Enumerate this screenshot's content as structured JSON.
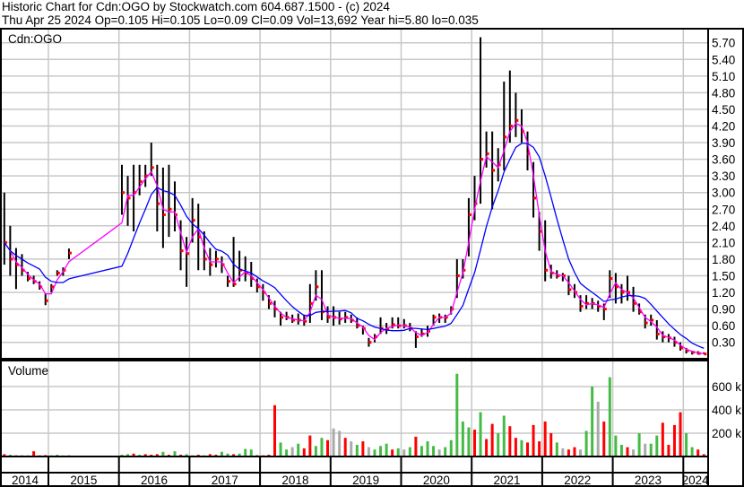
{
  "header": {
    "line1": "Historic Chart for Cdn:OGO by Stockwatch.com 604.687.1500 - (c) 2024",
    "line2": "Thu Apr 25 2024  Op=0.105  Hi=0.105  Lo=0.09  Cl=0.09  Vol=13,692  Year hi=5.80  lo=0.035"
  },
  "colors": {
    "bar": "#000000",
    "close_tick": "#ff0000",
    "short_ma": "#ff00ff",
    "long_ma": "#0000ff",
    "vol_up": "#44bb44",
    "vol_down": "#ff0000",
    "vol_flat": "#aaaaaa",
    "grid": "#c8c8c8"
  },
  "chart_data": [
    {
      "type": "ohlc",
      "title": "Cdn:OGO",
      "ylim": [
        0.0,
        5.85
      ],
      "y_ticks": [
        "0.30",
        "0.60",
        "0.90",
        "1.20",
        "1.50",
        "1.80",
        "2.10",
        "2.40",
        "2.70",
        "3.00",
        "3.30",
        "3.60",
        "3.90",
        "4.20",
        "4.50",
        "4.80",
        "5.10",
        "5.40",
        "5.70"
      ],
      "x_labels": [
        "2014",
        "2015",
        "2016",
        "2017",
        "2018",
        "2019",
        "2020",
        "2021",
        "2022",
        "2023",
        "2024"
      ],
      "grid": true,
      "columns": [
        "month",
        "high",
        "low",
        "close"
      ],
      "rows": [
        [
          "2014-05",
          3.0,
          1.7,
          2.1
        ],
        [
          "2014-06",
          2.4,
          1.5,
          1.8
        ],
        [
          "2014-07",
          2.0,
          1.26,
          1.7
        ],
        [
          "2014-08",
          1.89,
          1.5,
          1.6
        ],
        [
          "2014-09",
          1.57,
          1.4,
          1.45
        ],
        [
          "2014-10",
          1.5,
          1.35,
          1.4
        ],
        [
          "2014-11",
          1.4,
          1.25,
          1.3
        ],
        [
          "2014-12",
          1.18,
          0.97,
          1.05
        ],
        [
          "2015-01",
          1.35,
          1.2,
          1.3
        ],
        [
          "2015-02",
          1.6,
          1.5,
          1.55
        ],
        [
          "2015-03",
          1.65,
          1.5,
          1.6
        ],
        [
          "2015-04",
          1.99,
          1.8,
          1.91
        ],
        [
          "2016-01",
          3.5,
          2.6,
          3.0
        ],
        [
          "2016-02",
          3.3,
          2.4,
          2.9
        ],
        [
          "2016-03",
          3.5,
          2.3,
          3.0
        ],
        [
          "2016-04",
          3.5,
          2.95,
          3.2
        ],
        [
          "2016-05",
          3.5,
          3.1,
          3.3
        ],
        [
          "2016-06",
          3.9,
          3.3,
          3.45
        ],
        [
          "2016-07",
          3.5,
          2.3,
          2.8
        ],
        [
          "2016-08",
          3.45,
          2.0,
          2.6
        ],
        [
          "2016-09",
          3.5,
          2.2,
          2.7
        ],
        [
          "2016-10",
          3.2,
          2.3,
          2.6
        ],
        [
          "2016-11",
          2.5,
          1.6,
          1.95
        ],
        [
          "2016-12",
          2.2,
          1.3,
          1.9
        ],
        [
          "2017-01",
          2.9,
          2.1,
          2.5
        ],
        [
          "2017-02",
          2.8,
          1.6,
          2.2
        ],
        [
          "2017-03",
          2.3,
          1.6,
          1.8
        ],
        [
          "2017-04",
          2.0,
          1.5,
          1.7
        ],
        [
          "2017-05",
          1.95,
          1.65,
          1.8
        ],
        [
          "2017-06",
          1.85,
          1.55,
          1.7
        ],
        [
          "2017-07",
          1.5,
          1.3,
          1.4
        ],
        [
          "2017-08",
          2.2,
          1.3,
          1.35
        ],
        [
          "2017-09",
          1.95,
          1.4,
          1.6
        ],
        [
          "2017-10",
          1.85,
          1.4,
          1.55
        ],
        [
          "2017-11",
          1.75,
          1.3,
          1.45
        ],
        [
          "2017-12",
          1.45,
          1.2,
          1.3
        ],
        [
          "2018-01",
          1.35,
          1.05,
          1.2
        ],
        [
          "2018-02",
          1.15,
          0.9,
          1.0
        ],
        [
          "2018-03",
          1.05,
          0.75,
          0.9
        ],
        [
          "2018-04",
          0.85,
          0.6,
          0.75
        ],
        [
          "2018-05",
          0.85,
          0.7,
          0.75
        ],
        [
          "2018-06",
          0.8,
          0.65,
          0.7
        ],
        [
          "2018-07",
          0.82,
          0.62,
          0.7
        ],
        [
          "2018-08",
          0.8,
          0.6,
          0.68
        ],
        [
          "2018-09",
          1.35,
          0.65,
          1.0
        ],
        [
          "2018-10",
          1.6,
          1.05,
          1.3
        ],
        [
          "2018-11",
          1.6,
          0.7,
          0.85
        ],
        [
          "2018-12",
          0.95,
          0.65,
          0.75
        ],
        [
          "2019-01",
          0.95,
          0.6,
          0.75
        ],
        [
          "2019-02",
          0.85,
          0.62,
          0.72
        ],
        [
          "2019-03",
          0.85,
          0.65,
          0.75
        ],
        [
          "2019-04",
          0.8,
          0.65,
          0.7
        ],
        [
          "2019-05",
          0.75,
          0.55,
          0.6
        ],
        [
          "2019-06",
          0.6,
          0.44,
          0.55
        ],
        [
          "2019-07",
          0.38,
          0.22,
          0.3
        ],
        [
          "2019-08",
          0.45,
          0.3,
          0.4
        ],
        [
          "2019-09",
          0.75,
          0.45,
          0.55
        ],
        [
          "2019-10",
          0.65,
          0.45,
          0.55
        ],
        [
          "2019-11",
          0.75,
          0.55,
          0.62
        ],
        [
          "2019-12",
          0.75,
          0.55,
          0.6
        ],
        [
          "2020-01",
          0.72,
          0.55,
          0.6
        ],
        [
          "2020-02",
          0.65,
          0.5,
          0.55
        ],
        [
          "2020-03",
          0.5,
          0.2,
          0.4
        ],
        [
          "2020-04",
          0.55,
          0.4,
          0.45
        ],
        [
          "2020-05",
          0.6,
          0.4,
          0.5
        ],
        [
          "2020-06",
          0.8,
          0.6,
          0.75
        ],
        [
          "2020-07",
          0.82,
          0.65,
          0.75
        ],
        [
          "2020-08",
          0.8,
          0.65,
          0.75
        ],
        [
          "2020-09",
          0.95,
          0.8,
          0.9
        ],
        [
          "2020-10",
          1.8,
          1.1,
          1.5
        ],
        [
          "2020-11",
          1.8,
          1.45,
          1.6
        ],
        [
          "2020-12",
          2.9,
          1.85,
          2.6
        ],
        [
          "2021-01",
          3.3,
          2.5,
          2.8
        ],
        [
          "2021-02",
          5.8,
          2.8,
          3.6
        ],
        [
          "2021-03",
          4.1,
          3.45,
          3.7
        ],
        [
          "2021-04",
          4.1,
          2.7,
          3.4
        ],
        [
          "2021-05",
          3.8,
          3.2,
          3.5
        ],
        [
          "2021-06",
          5.0,
          3.4,
          4.0
        ],
        [
          "2021-07",
          5.2,
          3.9,
          4.2
        ],
        [
          "2021-08",
          4.8,
          4.0,
          4.3
        ],
        [
          "2021-09",
          4.5,
          3.9,
          4.1
        ],
        [
          "2021-10",
          4.1,
          3.4,
          3.7
        ],
        [
          "2021-11",
          3.55,
          2.55,
          2.9
        ],
        [
          "2021-12",
          2.65,
          1.95,
          2.3
        ],
        [
          "2022-01",
          2.5,
          1.4,
          1.6
        ],
        [
          "2022-02",
          1.7,
          1.45,
          1.55
        ],
        [
          "2022-03",
          1.6,
          1.45,
          1.5
        ],
        [
          "2022-04",
          1.55,
          1.4,
          1.5
        ],
        [
          "2022-05",
          1.5,
          1.15,
          1.25
        ],
        [
          "2022-06",
          1.35,
          1.1,
          1.2
        ],
        [
          "2022-07",
          1.15,
          0.85,
          0.95
        ],
        [
          "2022-08",
          1.15,
          0.9,
          1.0
        ],
        [
          "2022-09",
          1.1,
          0.9,
          1.0
        ],
        [
          "2022-10",
          1.05,
          0.85,
          0.95
        ],
        [
          "2022-11",
          1.0,
          0.7,
          0.9
        ],
        [
          "2022-12",
          1.6,
          1.1,
          1.45
        ],
        [
          "2023-01",
          1.55,
          1.0,
          1.3
        ],
        [
          "2023-02",
          1.35,
          1.0,
          1.2
        ],
        [
          "2023-03",
          1.5,
          1.05,
          1.2
        ],
        [
          "2023-04",
          1.3,
          0.85,
          1.0
        ],
        [
          "2023-05",
          1.0,
          0.8,
          0.85
        ],
        [
          "2023-06",
          0.8,
          0.55,
          0.65
        ],
        [
          "2023-07",
          0.8,
          0.6,
          0.7
        ],
        [
          "2023-08",
          0.7,
          0.35,
          0.45
        ],
        [
          "2023-09",
          0.5,
          0.3,
          0.4
        ],
        [
          "2023-10",
          0.45,
          0.3,
          0.38
        ],
        [
          "2023-11",
          0.4,
          0.22,
          0.3
        ],
        [
          "2023-12",
          0.3,
          0.15,
          0.2
        ],
        [
          "2024-01",
          0.2,
          0.1,
          0.15
        ],
        [
          "2024-02",
          0.15,
          0.08,
          0.12
        ],
        [
          "2024-03",
          0.14,
          0.08,
          0.1
        ],
        [
          "2024-04",
          0.12,
          0.09,
          0.09
        ]
      ]
    },
    {
      "type": "bar",
      "title": "Volume",
      "y_ticks": [
        "200 k",
        "400 k",
        "600 k"
      ],
      "ylim_k": [
        0,
        780
      ],
      "columns": [
        "month",
        "volume_k",
        "direction"
      ],
      "rows": [
        [
          "2014-05",
          20,
          "d"
        ],
        [
          "2014-06",
          15,
          "u"
        ],
        [
          "2014-07",
          10,
          "d"
        ],
        [
          "2014-08",
          12,
          "f"
        ],
        [
          "2014-09",
          10,
          "u"
        ],
        [
          "2014-10",
          45,
          "d"
        ],
        [
          "2014-11",
          10,
          "d"
        ],
        [
          "2014-12",
          12,
          "d"
        ],
        [
          "2015-01",
          10,
          "u"
        ],
        [
          "2015-02",
          15,
          "u"
        ],
        [
          "2015-03",
          10,
          "f"
        ],
        [
          "2015-04",
          12,
          "f"
        ],
        [
          "2016-01",
          15,
          "u"
        ],
        [
          "2016-02",
          20,
          "u"
        ],
        [
          "2016-03",
          25,
          "d"
        ],
        [
          "2016-04",
          15,
          "u"
        ],
        [
          "2016-05",
          20,
          "d"
        ],
        [
          "2016-06",
          15,
          "d"
        ],
        [
          "2016-07",
          20,
          "d"
        ],
        [
          "2016-08",
          40,
          "u"
        ],
        [
          "2016-09",
          15,
          "d"
        ],
        [
          "2016-10",
          45,
          "u"
        ],
        [
          "2016-11",
          15,
          "d"
        ],
        [
          "2016-12",
          20,
          "u"
        ],
        [
          "2017-01",
          10,
          "u"
        ],
        [
          "2017-02",
          15,
          "d"
        ],
        [
          "2017-03",
          10,
          "u"
        ],
        [
          "2017-04",
          20,
          "d"
        ],
        [
          "2017-05",
          15,
          "d"
        ],
        [
          "2017-06",
          40,
          "u"
        ],
        [
          "2017-07",
          25,
          "u"
        ],
        [
          "2017-08",
          20,
          "d"
        ],
        [
          "2017-09",
          25,
          "u"
        ],
        [
          "2017-10",
          65,
          "u"
        ],
        [
          "2017-11",
          60,
          "u"
        ],
        [
          "2017-12",
          15,
          "f"
        ],
        [
          "2018-01",
          10,
          "d"
        ],
        [
          "2018-02",
          15,
          "d"
        ],
        [
          "2018-03",
          440,
          "d"
        ],
        [
          "2018-04",
          120,
          "u"
        ],
        [
          "2018-05",
          60,
          "u"
        ],
        [
          "2018-06",
          80,
          "f"
        ],
        [
          "2018-07",
          110,
          "u"
        ],
        [
          "2018-08",
          70,
          "d"
        ],
        [
          "2018-09",
          180,
          "d"
        ],
        [
          "2018-10",
          90,
          "u"
        ],
        [
          "2018-11",
          160,
          "u"
        ],
        [
          "2018-12",
          140,
          "d"
        ],
        [
          "2019-01",
          240,
          "f"
        ],
        [
          "2019-02",
          220,
          "f"
        ],
        [
          "2019-03",
          160,
          "d"
        ],
        [
          "2019-04",
          130,
          "f"
        ],
        [
          "2019-05",
          100,
          "u"
        ],
        [
          "2019-06",
          130,
          "d"
        ],
        [
          "2019-07",
          80,
          "f"
        ],
        [
          "2019-08",
          60,
          "u"
        ],
        [
          "2019-09",
          90,
          "u"
        ],
        [
          "2019-10",
          110,
          "u"
        ],
        [
          "2019-11",
          60,
          "d"
        ],
        [
          "2019-12",
          70,
          "u"
        ],
        [
          "2020-01",
          60,
          "f"
        ],
        [
          "2020-02",
          80,
          "u"
        ],
        [
          "2020-03",
          170,
          "d"
        ],
        [
          "2020-04",
          90,
          "u"
        ],
        [
          "2020-05",
          130,
          "u"
        ],
        [
          "2020-06",
          90,
          "u"
        ],
        [
          "2020-07",
          60,
          "f"
        ],
        [
          "2020-08",
          80,
          "u"
        ],
        [
          "2020-09",
          140,
          "u"
        ],
        [
          "2020-10",
          710,
          "u"
        ],
        [
          "2020-11",
          300,
          "u"
        ],
        [
          "2020-12",
          250,
          "u"
        ],
        [
          "2021-01",
          230,
          "d"
        ],
        [
          "2021-02",
          380,
          "u"
        ],
        [
          "2021-03",
          150,
          "d"
        ],
        [
          "2021-04",
          280,
          "d"
        ],
        [
          "2021-05",
          200,
          "u"
        ],
        [
          "2021-06",
          350,
          "u"
        ],
        [
          "2021-07",
          260,
          "d"
        ],
        [
          "2021-08",
          160,
          "d"
        ],
        [
          "2021-09",
          140,
          "u"
        ],
        [
          "2021-10",
          120,
          "d"
        ],
        [
          "2021-11",
          270,
          "d"
        ],
        [
          "2021-12",
          130,
          "d"
        ],
        [
          "2022-01",
          300,
          "d"
        ],
        [
          "2022-02",
          200,
          "d"
        ],
        [
          "2022-03",
          120,
          "u"
        ],
        [
          "2022-04",
          70,
          "f"
        ],
        [
          "2022-05",
          60,
          "d"
        ],
        [
          "2022-06",
          80,
          "d"
        ],
        [
          "2022-07",
          60,
          "f"
        ],
        [
          "2022-08",
          220,
          "u"
        ],
        [
          "2022-09",
          600,
          "u"
        ],
        [
          "2022-10",
          470,
          "f"
        ],
        [
          "2022-11",
          300,
          "d"
        ],
        [
          "2022-12",
          680,
          "u"
        ],
        [
          "2023-01",
          180,
          "u"
        ],
        [
          "2023-02",
          100,
          "u"
        ],
        [
          "2023-03",
          80,
          "d"
        ],
        [
          "2023-04",
          60,
          "f"
        ],
        [
          "2023-05",
          200,
          "u"
        ],
        [
          "2023-06",
          110,
          "f"
        ],
        [
          "2023-07",
          110,
          "u"
        ],
        [
          "2023-08",
          180,
          "u"
        ],
        [
          "2023-09",
          290,
          "d"
        ],
        [
          "2023-10",
          100,
          "d"
        ],
        [
          "2023-11",
          270,
          "d"
        ],
        [
          "2023-12",
          380,
          "d"
        ],
        [
          "2024-01",
          200,
          "u"
        ],
        [
          "2024-02",
          80,
          "u"
        ],
        [
          "2024-03",
          60,
          "d"
        ],
        [
          "2024-04",
          20,
          "d"
        ]
      ]
    }
  ]
}
